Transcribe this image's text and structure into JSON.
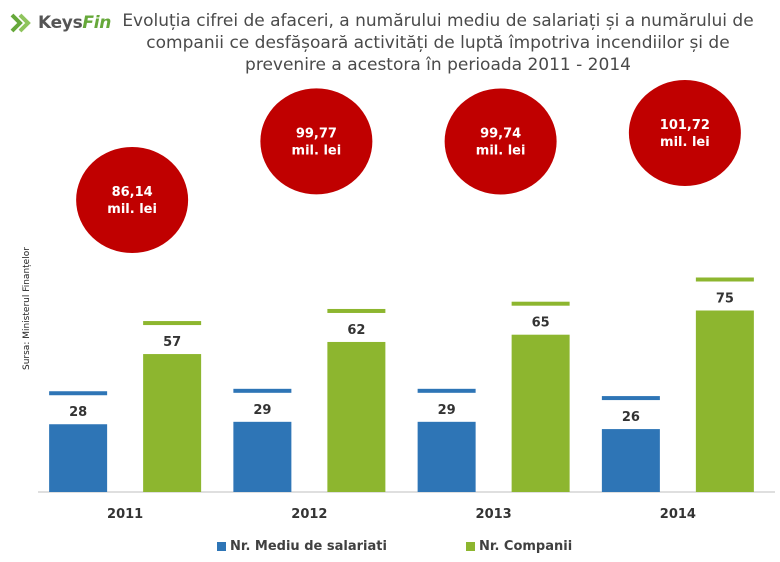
{
  "logo": {
    "brand_part1": "Keys",
    "brand_part2": "Fin"
  },
  "chart_data": {
    "type": "bar",
    "title": "Evoluția cifrei de afaceri, a numărului mediu de salariați și a numărului de companii ce desfășoară activități de luptă împotriva incendiilor și de prevenire a acestora în perioada 2011 - 2014",
    "source_label": "Sursa: Ministerul Finanțelor",
    "categories": [
      "2011",
      "2012",
      "2013",
      "2014"
    ],
    "series": [
      {
        "name": "Nr. Mediu de salariati",
        "values": [
          28,
          29,
          29,
          26
        ],
        "labels": [
          "28",
          "29",
          "29",
          "26"
        ],
        "color": "#2e75b6"
      },
      {
        "name": "Nr. Companii",
        "values": [
          57,
          62,
          65,
          75
        ],
        "labels": [
          "57",
          "62",
          "65",
          "75"
        ],
        "color": "#8db62f"
      }
    ],
    "annotations": [
      {
        "category": "2011",
        "value": 86.14,
        "line1": "86,14",
        "line2": "mil. lei"
      },
      {
        "category": "2012",
        "value": 99.77,
        "line1": "99,77",
        "line2": "mil. lei"
      },
      {
        "category": "2013",
        "value": 99.74,
        "line1": "99,74",
        "line2": "mil. lei"
      },
      {
        "category": "2014",
        "value": 101.72,
        "line1": "101,72",
        "line2": "mil. lei"
      }
    ],
    "annotation_color": "#c00000",
    "legend_position": "bottom",
    "grid": false
  }
}
